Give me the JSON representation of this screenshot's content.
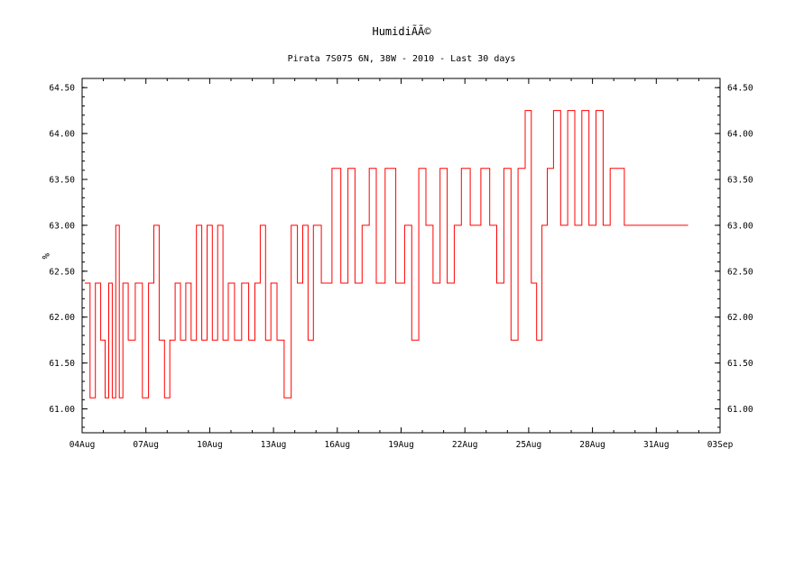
{
  "chart_data": {
    "type": "line",
    "title": "HumidiÃÃ©",
    "subtitle": "Pirata 7S075 6N, 38W - 2010 - Last 30 days",
    "ylabel": "%",
    "xlabel": "",
    "x_ticks": [
      "04Aug",
      "07Aug",
      "10Aug",
      "13Aug",
      "16Aug",
      "19Aug",
      "22Aug",
      "25Aug",
      "28Aug",
      "31Aug",
      "03Sep"
    ],
    "y_ticks": [
      "61.00",
      "61.50",
      "62.00",
      "62.50",
      "63.00",
      "63.50",
      "64.00",
      "64.50"
    ],
    "xlim": [
      "2010-08-04",
      "2010-09-03"
    ],
    "ylim": [
      60.74,
      64.6
    ],
    "grid": false,
    "series": [
      {
        "color": "#ff0000",
        "step": "hourly",
        "points": [
          [
            "2010-08-04",
            62.37
          ],
          [
            "2010-08-04",
            61.12
          ],
          [
            "2010-08-04",
            62.37
          ],
          [
            "2010-08-04",
            61.75
          ],
          [
            "2010-08-05",
            61.12
          ],
          [
            "2010-08-05",
            62.37
          ],
          [
            "2010-08-05",
            61.12
          ],
          [
            "2010-08-05",
            63.0
          ],
          [
            "2010-08-05",
            61.12
          ],
          [
            "2010-08-05",
            62.37
          ],
          [
            "2010-08-06",
            61.75
          ],
          [
            "2010-08-06",
            62.37
          ],
          [
            "2010-08-06",
            61.12
          ],
          [
            "2010-08-07",
            62.37
          ],
          [
            "2010-08-07",
            63.0
          ],
          [
            "2010-08-07",
            61.75
          ],
          [
            "2010-08-07",
            61.12
          ],
          [
            "2010-08-08",
            61.75
          ],
          [
            "2010-08-08",
            62.37
          ],
          [
            "2010-08-08",
            61.75
          ],
          [
            "2010-08-08",
            62.37
          ],
          [
            "2010-08-09",
            61.75
          ],
          [
            "2010-08-09",
            63.0
          ],
          [
            "2010-08-09",
            61.75
          ],
          [
            "2010-08-09",
            63.0
          ],
          [
            "2010-08-10",
            61.75
          ],
          [
            "2010-08-10",
            63.0
          ],
          [
            "2010-08-10",
            61.75
          ],
          [
            "2010-08-10",
            62.37
          ],
          [
            "2010-08-11",
            61.75
          ],
          [
            "2010-08-11",
            62.37
          ],
          [
            "2010-08-11",
            61.75
          ],
          [
            "2010-08-12",
            62.37
          ],
          [
            "2010-08-12",
            63.0
          ],
          [
            "2010-08-12",
            61.75
          ],
          [
            "2010-08-12",
            62.37
          ],
          [
            "2010-08-13",
            61.75
          ],
          [
            "2010-08-13",
            61.12
          ],
          [
            "2010-08-13",
            63.0
          ],
          [
            "2010-08-14",
            62.37
          ],
          [
            "2010-08-14",
            63.0
          ],
          [
            "2010-08-14",
            61.75
          ],
          [
            "2010-08-14",
            63.0
          ],
          [
            "2010-08-15",
            62.37
          ],
          [
            "2010-08-15",
            63.62
          ],
          [
            "2010-08-16",
            62.37
          ],
          [
            "2010-08-16",
            63.62
          ],
          [
            "2010-08-16",
            62.37
          ],
          [
            "2010-08-17",
            63.0
          ],
          [
            "2010-08-17",
            63.62
          ],
          [
            "2010-08-17",
            62.37
          ],
          [
            "2010-08-18",
            63.62
          ],
          [
            "2010-08-18",
            62.37
          ],
          [
            "2010-08-19",
            63.0
          ],
          [
            "2010-08-19",
            61.75
          ],
          [
            "2010-08-19",
            63.62
          ],
          [
            "2010-08-20",
            63.0
          ],
          [
            "2010-08-20",
            62.37
          ],
          [
            "2010-08-20",
            63.62
          ],
          [
            "2010-08-21",
            62.37
          ],
          [
            "2010-08-21",
            63.0
          ],
          [
            "2010-08-21",
            63.62
          ],
          [
            "2010-08-22",
            63.0
          ],
          [
            "2010-08-22",
            63.62
          ],
          [
            "2010-08-23",
            63.0
          ],
          [
            "2010-08-23",
            62.37
          ],
          [
            "2010-08-23",
            63.62
          ],
          [
            "2010-08-24",
            61.75
          ],
          [
            "2010-08-24",
            63.62
          ],
          [
            "2010-08-24",
            64.25
          ],
          [
            "2010-08-25",
            62.37
          ],
          [
            "2010-08-25",
            61.75
          ],
          [
            "2010-08-25",
            63.0
          ],
          [
            "2010-08-25",
            63.62
          ],
          [
            "2010-08-26",
            64.25
          ],
          [
            "2010-08-26",
            63.0
          ],
          [
            "2010-08-26",
            64.25
          ],
          [
            "2010-08-27",
            63.0
          ],
          [
            "2010-08-27",
            64.25
          ],
          [
            "2010-08-27",
            63.0
          ],
          [
            "2010-08-28",
            64.25
          ],
          [
            "2010-08-28",
            63.0
          ],
          [
            "2010-08-28",
            63.62
          ],
          [
            "2010-08-29",
            63.0
          ],
          [
            "2010-09-01",
            63.0
          ]
        ]
      }
    ]
  }
}
